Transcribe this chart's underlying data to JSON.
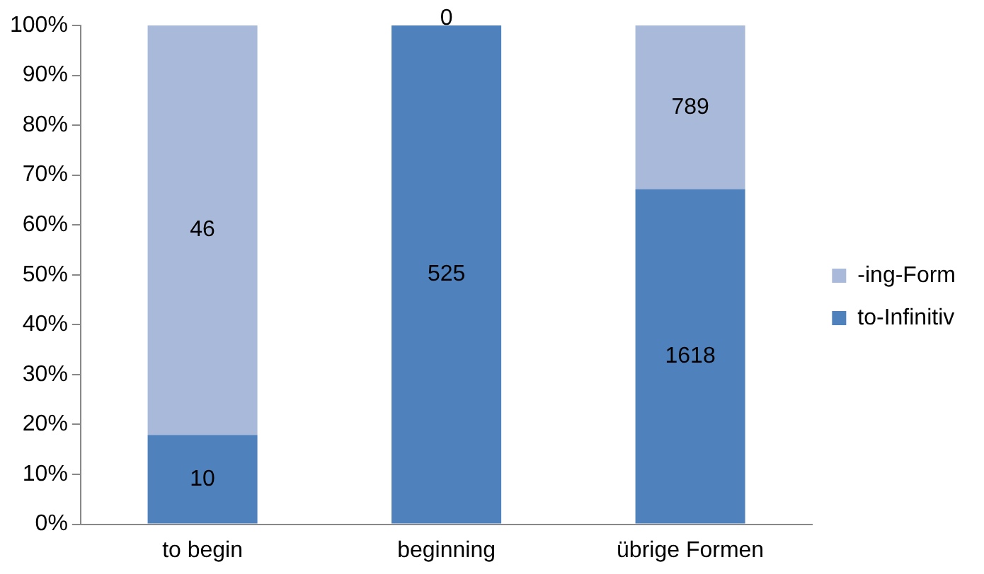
{
  "chart_data": {
    "type": "bar",
    "stacked": true,
    "categories": [
      "to begin",
      "beginning",
      "übrige Formen"
    ],
    "series": [
      {
        "name": "to-Infinitiv",
        "color": "#4f81bd",
        "values": [
          17.9,
          100,
          67.2
        ]
      },
      {
        "name": "-ing-Form",
        "color": "#a9b9d9",
        "values": [
          82.1,
          0,
          32.8
        ]
      }
    ],
    "annotations": [
      "10",
      "525",
      "1618",
      "46",
      "0",
      "789"
    ],
    "ylim": [
      0,
      100
    ],
    "yticks": [
      {
        "value": 0,
        "label": "0%"
      },
      {
        "value": 10,
        "label": "10%"
      },
      {
        "value": 20,
        "label": "20%"
      },
      {
        "value": 30,
        "label": "30%"
      },
      {
        "value": 40,
        "label": "40%"
      },
      {
        "value": 50,
        "label": "50%"
      },
      {
        "value": 60,
        "label": "60%"
      },
      {
        "value": 70,
        "label": "70%"
      },
      {
        "value": 80,
        "label": "80%"
      },
      {
        "value": 90,
        "label": "90%"
      },
      {
        "value": 100,
        "label": "100%"
      }
    ],
    "grid": false,
    "legend": "right"
  }
}
